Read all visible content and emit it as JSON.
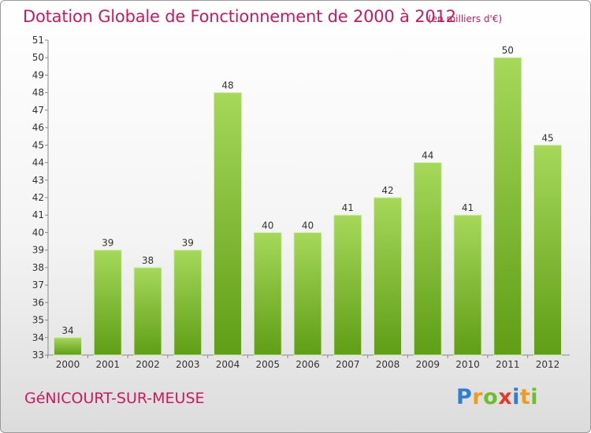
{
  "title": "Dotation Globale de Fonctionnement de 2000 à 2012",
  "subtitle": "(en milliers d'€)",
  "place": "GéNICOURT-SUR-MEUSE",
  "logo": {
    "text": "Proxiti",
    "letters": [
      "P",
      "r",
      "o",
      "x",
      "i",
      "t",
      "i"
    ]
  },
  "colors": {
    "bar": "#7fbf2a",
    "bar_light": "#a4d756",
    "title": "#cc1860"
  },
  "chart_data": {
    "type": "bar",
    "title": "Dotation Globale de Fonctionnement de 2000 à 2012",
    "subtitle": "(en milliers d'€)",
    "categories": [
      "2000",
      "2001",
      "2002",
      "2003",
      "2004",
      "2005",
      "2006",
      "2007",
      "2008",
      "2009",
      "2010",
      "2011",
      "2012"
    ],
    "values": [
      34,
      39,
      38,
      39,
      48,
      40,
      40,
      41,
      42,
      44,
      41,
      50,
      45
    ],
    "ylim": [
      33,
      51
    ],
    "yticks": [
      33,
      34,
      35,
      36,
      37,
      38,
      39,
      40,
      41,
      42,
      43,
      44,
      45,
      46,
      47,
      48,
      49,
      50,
      51
    ],
    "grid": false
  }
}
